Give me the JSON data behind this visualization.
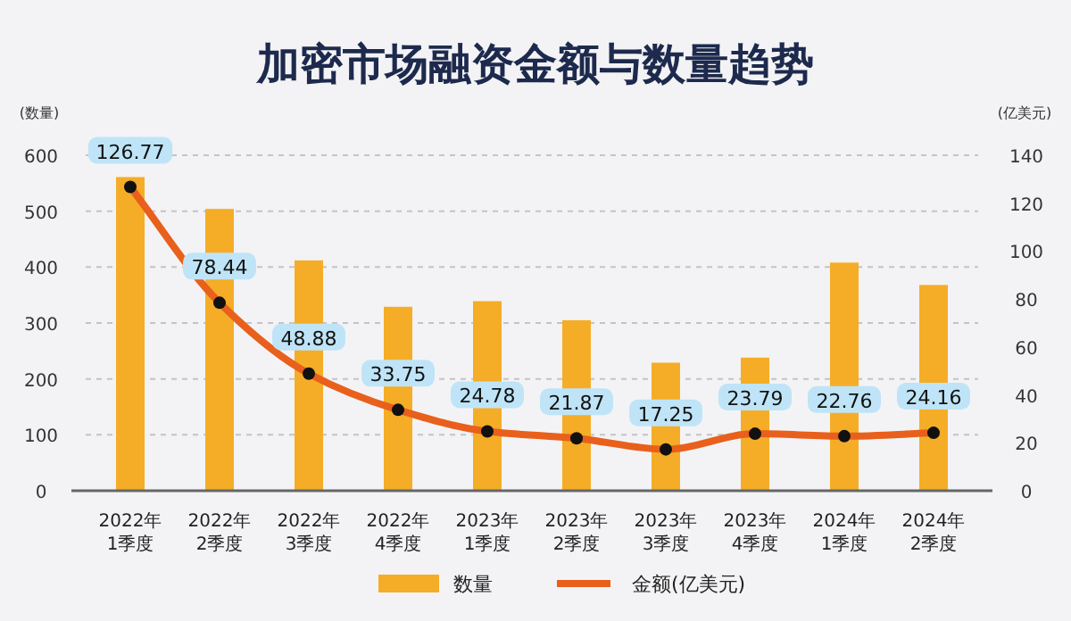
{
  "chart_data": {
    "type": "bar",
    "title": "加密市场融资金额与数量趋势",
    "ylabel": "(数量)",
    "y2label": "(亿美元)",
    "categories": [
      "2022年\n1季度",
      "2022年\n2季度",
      "2022年\n3季度",
      "2022年\n4季度",
      "2023年\n1季度",
      "2023年\n2季度",
      "2023年\n3季度",
      "2023年\n4季度",
      "2024年\n1季度",
      "2024年\n2季度"
    ],
    "series": [
      {
        "name": "数量",
        "color": "#f5ad27",
        "values": [
          561,
          504,
          412,
          329,
          339,
          305,
          229,
          238,
          408,
          368
        ]
      },
      {
        "name": "金额(亿美元)",
        "type": "line",
        "axis": "y2",
        "color": "#e8601c",
        "marker": "circle",
        "values": [
          126.77,
          78.44,
          48.88,
          33.75,
          24.78,
          21.87,
          17.25,
          23.79,
          22.76,
          24.16
        ],
        "value_labels": [
          "126.77",
          "78.44",
          "48.88",
          "33.75",
          "24.78",
          "21.87",
          "17.25",
          "23.79",
          "22.76",
          "24.16"
        ]
      }
    ],
    "ylim": [
      0,
      600
    ],
    "yticks": [
      0,
      100,
      200,
      300,
      400,
      500,
      600
    ],
    "y2lim": [
      0,
      140
    ],
    "y2ticks": [
      0,
      20,
      40,
      60,
      80,
      100,
      120,
      140
    ],
    "grid": "y",
    "legend": "bottom"
  }
}
